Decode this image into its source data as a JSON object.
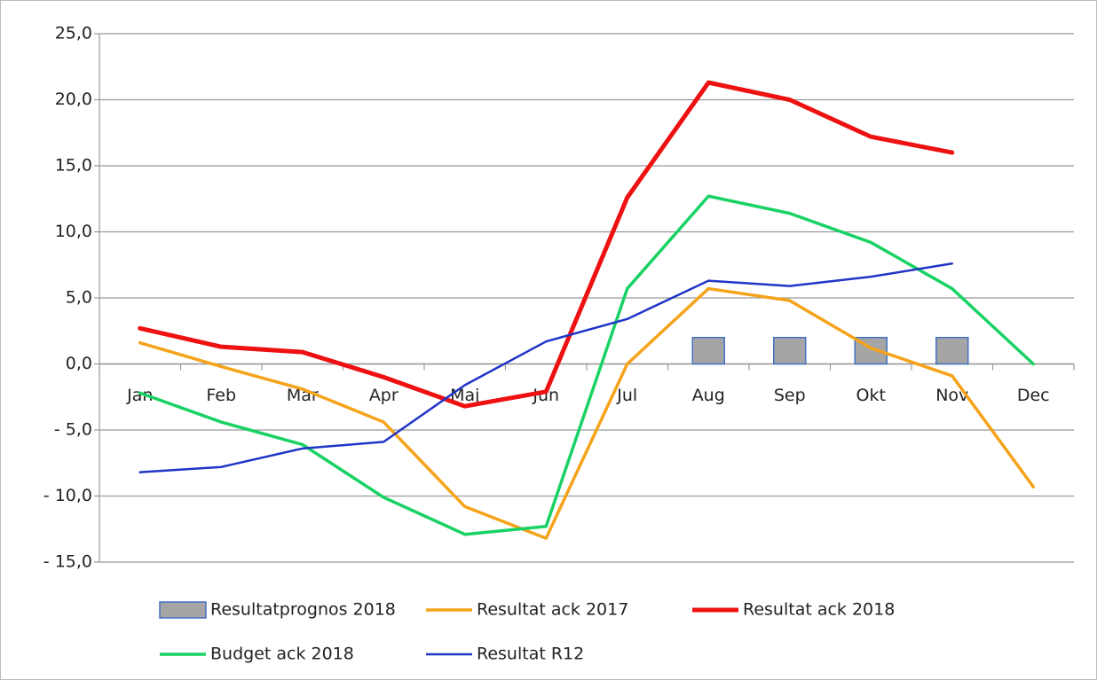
{
  "chart_data": {
    "type": "line",
    "categories": [
      "Jan",
      "Feb",
      "Mar",
      "Apr",
      "Maj",
      "Jun",
      "Jul",
      "Aug",
      "Sep",
      "Okt",
      "Nov",
      "Dec"
    ],
    "series": [
      {
        "name": "Resultatprognos 2018",
        "type": "bar",
        "color": "#a5a5a5",
        "edge_color": "#4472c4",
        "values": [
          null,
          null,
          null,
          null,
          null,
          null,
          null,
          2,
          2,
          2,
          2,
          null
        ]
      },
      {
        "name": "Resultat ack 2017",
        "type": "line",
        "color": "#f5a31a",
        "line_width": 3.5,
        "values": [
          1.6,
          -0.2,
          -1.9,
          -4.4,
          -10.8,
          -13.2,
          0,
          5.7,
          4.8,
          1.2,
          -0.9,
          -9.3
        ]
      },
      {
        "name": "Resultat ack 2018",
        "type": "line",
        "color": "#ee1111",
        "line_width": 5,
        "values": [
          2.7,
          1.3,
          0.9,
          -1.0,
          -3.2,
          -2.1,
          12.6,
          21.3,
          20.0,
          17.2,
          16.0,
          null
        ]
      },
      {
        "name": "Budget ack 2018",
        "type": "line",
        "color": "#19d264",
        "line_width": 3.5,
        "values": [
          -2.2,
          -4.4,
          -6.1,
          -10.1,
          -12.9,
          -12.3,
          5.7,
          12.7,
          11.4,
          9.2,
          5.7,
          0
        ]
      },
      {
        "name": "Resultat R12",
        "type": "line",
        "color": "#2035c8",
        "line_width": 2.5,
        "values": [
          -8.2,
          -7.8,
          -6.4,
          -5.9,
          -1.6,
          1.7,
          3.4,
          6.3,
          5.9,
          6.6,
          7.6,
          null
        ]
      }
    ],
    "ylim": [
      -15,
      25
    ],
    "yticks": [
      {
        "value": -15,
        "label": "- 15,0"
      },
      {
        "value": -10,
        "label": "- 10,0"
      },
      {
        "value": -5,
        "label": "- 5,0"
      },
      {
        "value": 0,
        "label": "0,0"
      },
      {
        "value": 5,
        "label": "5,0"
      },
      {
        "value": 10,
        "label": "10,0"
      },
      {
        "value": 15,
        "label": "15,0"
      },
      {
        "value": 20,
        "label": "20,0"
      },
      {
        "value": 25,
        "label": "25,0"
      }
    ],
    "grid": true,
    "legend": "bottom"
  }
}
